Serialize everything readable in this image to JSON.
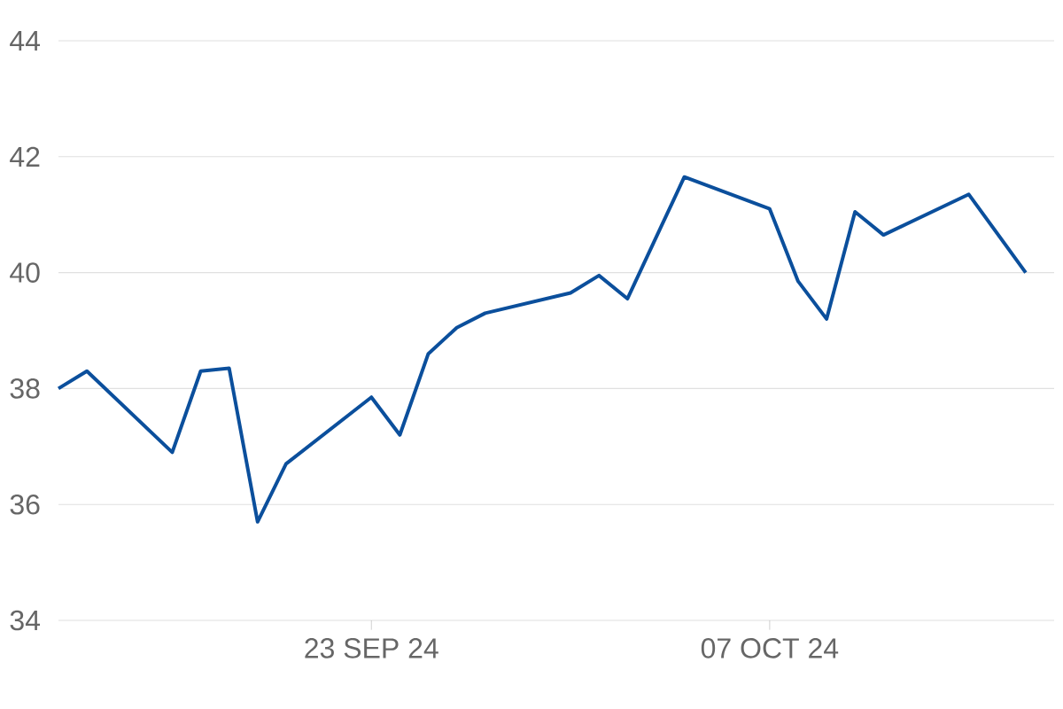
{
  "chart_data": {
    "type": "line",
    "color": "#0b4f9c",
    "x": [
      "2024-09-12",
      "2024-09-13",
      "2024-09-16",
      "2024-09-17",
      "2024-09-18",
      "2024-09-19",
      "2024-09-20",
      "2024-09-23",
      "2024-09-24",
      "2024-09-25",
      "2024-09-26",
      "2024-09-27",
      "2024-09-30",
      "2024-10-01",
      "2024-10-02",
      "2024-10-03",
      "2024-10-04",
      "2024-10-07",
      "2024-10-08",
      "2024-10-09",
      "2024-10-10",
      "2024-10-11",
      "2024-10-14",
      "2024-10-16"
    ],
    "values": [
      38.0,
      38.3,
      36.9,
      38.3,
      38.35,
      35.7,
      36.7,
      37.85,
      37.2,
      38.6,
      39.05,
      39.3,
      39.65,
      39.95,
      39.55,
      40.6,
      41.65,
      41.1,
      39.85,
      39.2,
      41.05,
      40.65,
      41.35,
      40.0
    ],
    "xlim": [
      "2024-09-12",
      "2024-10-17"
    ],
    "xticks": [
      {
        "value": "2024-09-23",
        "label": "23 SEP 24"
      },
      {
        "value": "2024-10-07",
        "label": "07 OCT 24"
      }
    ],
    "ylim": [
      34,
      44
    ],
    "yticks": [
      34,
      36,
      38,
      40,
      42,
      44
    ],
    "grid": "y",
    "marker": "none",
    "line_style": "solid"
  }
}
